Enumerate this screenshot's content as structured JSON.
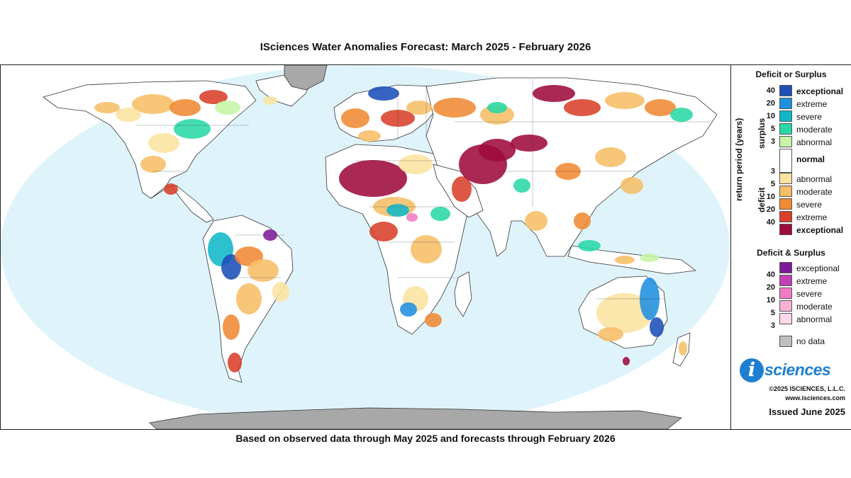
{
  "title": "ISciences Water Anomalies Forecast: March 2025 - February 2026",
  "subtitle": "Based on observed data through May 2025 and forecasts through February 2026",
  "colors": {
    "ocean": "#dff3fb",
    "land_normal": "#ffffff",
    "land_outline": "#333333",
    "antarctica": "#a8a8a8",
    "surplus": [
      "#c6f5a8",
      "#29d8a6",
      "#10b8c9",
      "#1f8fe0",
      "#1c4fb8"
    ],
    "deficit": [
      "#fbe2a0",
      "#f6be66",
      "#f08a33",
      "#d8402a",
      "#9e0a3c"
    ],
    "both": [
      "#fcd9ea",
      "#f8b2d5",
      "#f07ac4",
      "#c43fb6",
      "#7e1a9a"
    ],
    "no_data": "#bfbfbf"
  },
  "legend": {
    "section1_title": "Deficit or Surplus",
    "axis_label": "return period (years)",
    "surplus_label": "surplus",
    "deficit_label": "deficit",
    "surplus_numbers": [
      "40",
      "20",
      "10",
      "5",
      "3"
    ],
    "surplus_categories": [
      "exceptional",
      "extreme",
      "severe",
      "moderate",
      "abnormal"
    ],
    "normal_label": "normal",
    "deficit_numbers": [
      "3",
      "5",
      "10",
      "20",
      "40"
    ],
    "deficit_categories": [
      "abnormal",
      "moderate",
      "severe",
      "extreme",
      "exceptional"
    ],
    "section2_title": "Deficit & Surplus",
    "both_numbers": [
      "40",
      "20",
      "10",
      "5",
      "3"
    ],
    "both_categories": [
      "exceptional",
      "extreme",
      "severe",
      "moderate",
      "abnormal"
    ],
    "no_data_label": "no data"
  },
  "branding": {
    "logo_letter": "i",
    "logo_word": "sciences",
    "copyright": "©2025 ISCIENCES, L.L.C.",
    "website": "www.isciences.com",
    "issued": "Issued June 2025"
  }
}
